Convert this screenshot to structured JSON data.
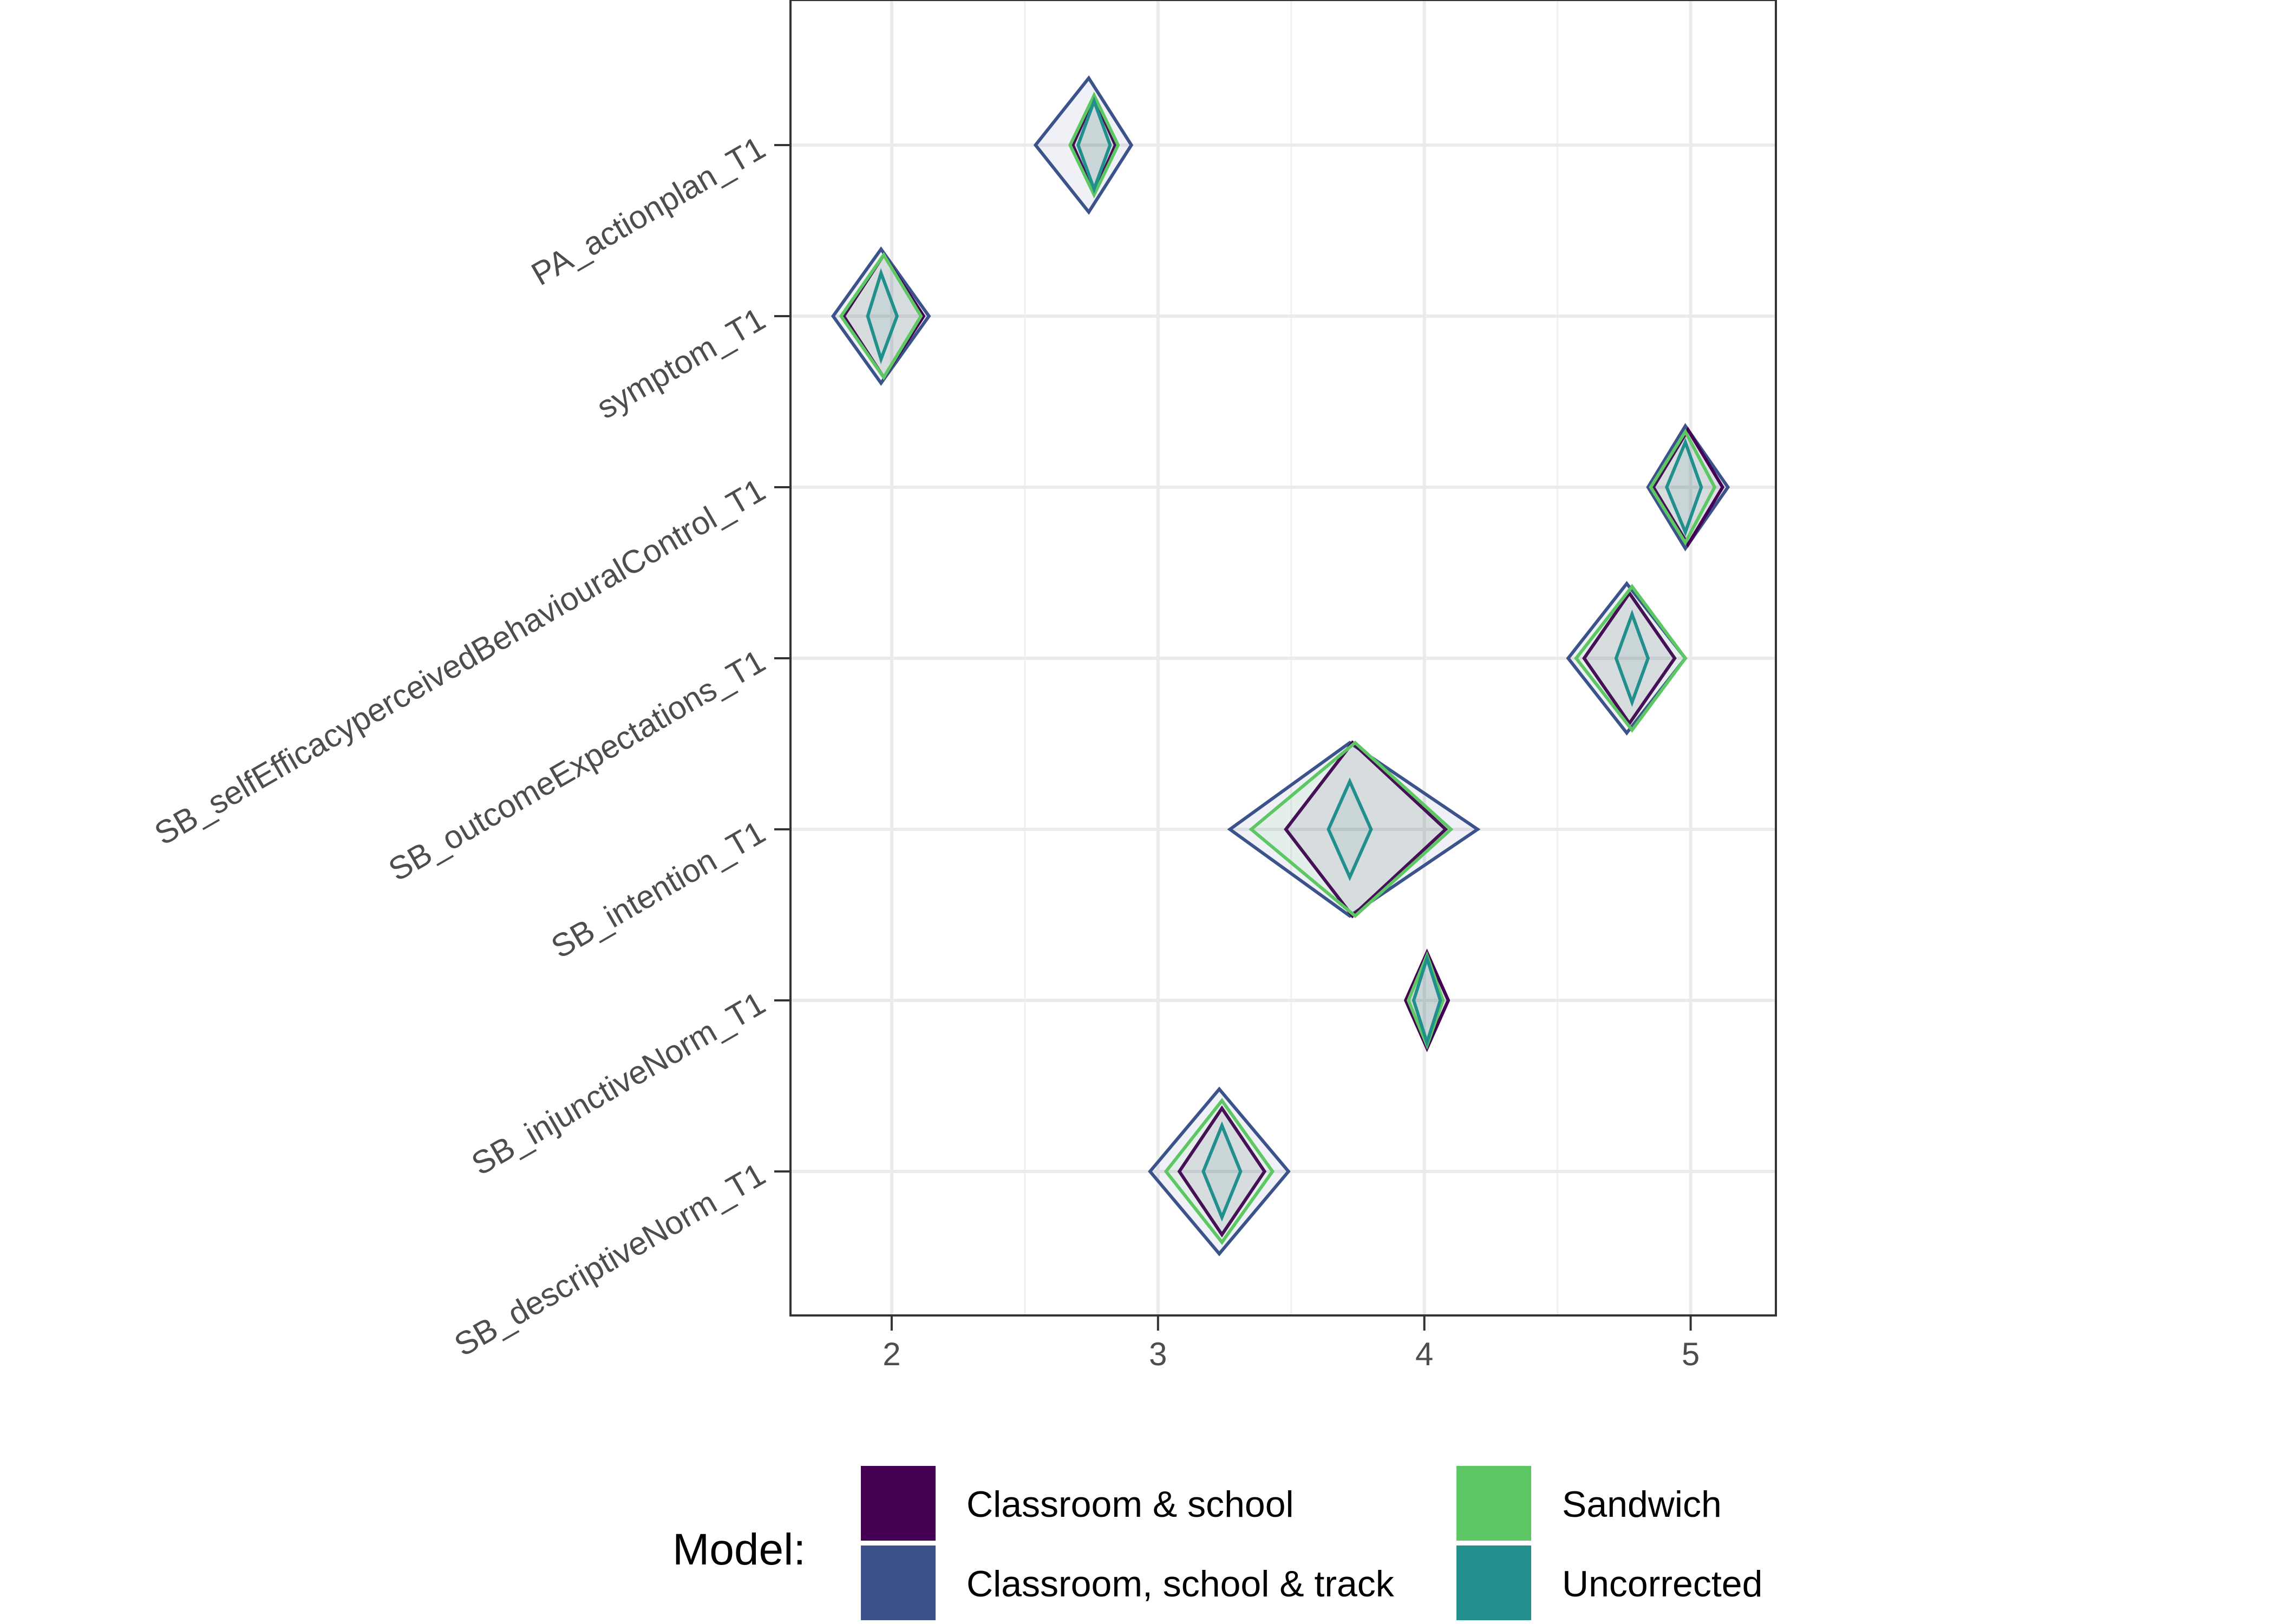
{
  "chart_data": {
    "type": "scatter",
    "title": "",
    "xlabel": "",
    "ylabel": "",
    "xlim": [
      1.62,
      5.32
    ],
    "x_ticks": [
      2,
      3,
      4,
      5
    ],
    "x_tick_labels": [
      "2",
      "3",
      "4",
      "5"
    ],
    "categories": [
      "PA_actionplan_T1",
      "symptom_T1",
      "SB_selfEfficacyperceivedBehaviouralControl_T1",
      "SB_outcomeExpectations_T1",
      "SB_intention_T1",
      "SB_injunctiveNorm_T1",
      "SB_descriptiveNorm_T1"
    ],
    "grid": true,
    "legend_position": "bottom",
    "legend": {
      "title": "Model:",
      "items": [
        {
          "label": "Classroom & school",
          "series_index": 0
        },
        {
          "label": "Classroom, school & track",
          "series_index": 1
        },
        {
          "label": "Sandwich",
          "series_index": 2
        },
        {
          "label": "Uncorrected",
          "series_index": 3
        }
      ]
    },
    "series": [
      {
        "name": "Classroom & school",
        "color": "#440154",
        "draw_order": 1,
        "points": [
          {
            "estimate": 2.76,
            "lower": 2.68,
            "upper": 2.84
          },
          {
            "estimate": 1.97,
            "lower": 1.82,
            "upper": 2.12
          },
          {
            "estimate": 4.99,
            "lower": 4.86,
            "upper": 5.12
          },
          {
            "estimate": 4.77,
            "lower": 4.6,
            "upper": 4.94
          },
          {
            "estimate": 3.73,
            "lower": 3.48,
            "upper": 4.08
          },
          {
            "estimate": 4.01,
            "lower": 3.93,
            "upper": 4.09
          },
          {
            "estimate": 3.24,
            "lower": 3.08,
            "upper": 3.4
          }
        ]
      },
      {
        "name": "Classroom, school & track",
        "color": "#3B528B",
        "draw_order": 0,
        "points": [
          {
            "estimate": 2.74,
            "lower": 2.54,
            "upper": 2.9
          },
          {
            "estimate": 1.96,
            "lower": 1.78,
            "upper": 2.14
          },
          {
            "estimate": 4.98,
            "lower": 4.84,
            "upper": 5.14
          },
          {
            "estimate": 4.76,
            "lower": 4.54,
            "upper": 4.98
          },
          {
            "estimate": 3.72,
            "lower": 3.27,
            "upper": 4.2
          },
          {
            "estimate": 4.01,
            "lower": 3.94,
            "upper": 4.09
          },
          {
            "estimate": 3.23,
            "lower": 2.97,
            "upper": 3.49
          }
        ]
      },
      {
        "name": "Sandwich",
        "color": "#5DC863",
        "draw_order": 2,
        "points": [
          {
            "estimate": 2.76,
            "lower": 2.67,
            "upper": 2.85
          },
          {
            "estimate": 1.97,
            "lower": 1.81,
            "upper": 2.11
          },
          {
            "estimate": 4.98,
            "lower": 4.85,
            "upper": 5.09
          },
          {
            "estimate": 4.78,
            "lower": 4.57,
            "upper": 4.98
          },
          {
            "estimate": 3.74,
            "lower": 3.35,
            "upper": 4.1
          },
          {
            "estimate": 4.01,
            "lower": 3.94,
            "upper": 4.07
          },
          {
            "estimate": 3.24,
            "lower": 3.03,
            "upper": 3.43
          }
        ]
      },
      {
        "name": "Uncorrected",
        "color": "#21908C",
        "draw_order": 3,
        "points": [
          {
            "estimate": 2.76,
            "lower": 2.7,
            "upper": 2.82
          },
          {
            "estimate": 1.96,
            "lower": 1.91,
            "upper": 2.02
          },
          {
            "estimate": 4.98,
            "lower": 4.91,
            "upper": 5.04
          },
          {
            "estimate": 4.78,
            "lower": 4.72,
            "upper": 4.84
          },
          {
            "estimate": 3.72,
            "lower": 3.64,
            "upper": 3.8
          },
          {
            "estimate": 4.01,
            "lower": 3.96,
            "upper": 4.06
          },
          {
            "estimate": 3.24,
            "lower": 3.17,
            "upper": 3.31
          }
        ]
      }
    ]
  }
}
